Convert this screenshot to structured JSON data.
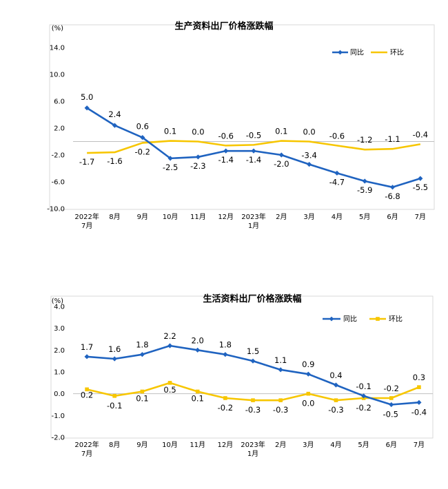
{
  "colors": {
    "yoy": "#1f63c0",
    "mom": "#f7c600"
  },
  "chart_data": [
    {
      "type": "line",
      "title": "生产资料出厂价格涨跌幅",
      "unit": "(%)",
      "categories": [
        [
          "2022年",
          "7月"
        ],
        [
          "8月"
        ],
        [
          "9月"
        ],
        [
          "10月"
        ],
        [
          "11月"
        ],
        [
          "12月"
        ],
        [
          "2023年",
          "1月"
        ],
        [
          "2月"
        ],
        [
          "3月"
        ],
        [
          "4月"
        ],
        [
          "5月"
        ],
        [
          "6月"
        ],
        [
          "7月"
        ]
      ],
      "ylim": [
        -10,
        14
      ],
      "yticks": [
        14,
        10,
        6,
        2,
        -2,
        -6,
        -10
      ],
      "ytick_labels": [
        "14.0",
        "10.0",
        "6.0",
        "2.0",
        "-2.0",
        "-6.0",
        "-10.0"
      ],
      "legend": {
        "placement": "top-right"
      },
      "series": [
        {
          "name": "同比",
          "color": "#1f63c0",
          "marker": "diamond",
          "values": [
            5.0,
            2.4,
            0.6,
            -2.5,
            -2.3,
            -1.4,
            -1.4,
            -2.0,
            -3.4,
            -4.7,
            -5.9,
            -6.8,
            -5.5
          ],
          "labels": [
            "5.0",
            "2.4",
            "0.6",
            "-2.5",
            "-2.3",
            "-1.4",
            "-1.4",
            "-2.0",
            "-3.4",
            "-4.7",
            "-5.9",
            "-6.8",
            "-5.5"
          ]
        },
        {
          "name": "环比",
          "color": "#f7c600",
          "marker": "none",
          "values": [
            -1.7,
            -1.6,
            -0.2,
            0.1,
            0.0,
            -0.6,
            -0.5,
            0.1,
            0.0,
            -0.6,
            -1.2,
            -1.1,
            -0.4
          ],
          "labels": [
            "-1.7",
            "-1.6",
            "-0.2",
            "0.1",
            "0.0",
            "-0.6",
            "-0.5",
            "0.1",
            "0.0",
            "-0.6",
            "-1.2",
            "-1.1",
            "-0.4"
          ]
        }
      ]
    },
    {
      "type": "line",
      "title": "生活资料出厂价格涨跌幅",
      "unit": "(%)",
      "categories": [
        [
          "2022年",
          "7月"
        ],
        [
          "8月"
        ],
        [
          "9月"
        ],
        [
          "10月"
        ],
        [
          "11月"
        ],
        [
          "12月"
        ],
        [
          "2023年",
          "1月"
        ],
        [
          "2月"
        ],
        [
          "3月"
        ],
        [
          "4月"
        ],
        [
          "5月"
        ],
        [
          "6月"
        ],
        [
          "7月"
        ]
      ],
      "ylim": [
        -2,
        4
      ],
      "yticks": [
        4,
        3,
        2,
        1,
        0,
        -1,
        -2
      ],
      "ytick_labels": [
        "4.0",
        "3.0",
        "2.0",
        "1.0",
        "0.0",
        "-1.0",
        "-2.0"
      ],
      "legend": {
        "placement": "top-right"
      },
      "series": [
        {
          "name": "同比",
          "color": "#1f63c0",
          "marker": "diamond",
          "values": [
            1.7,
            1.6,
            1.8,
            2.2,
            2.0,
            1.8,
            1.5,
            1.1,
            0.9,
            0.4,
            -0.1,
            -0.5,
            -0.4
          ],
          "labels": [
            "1.7",
            "1.6",
            "1.8",
            "2.2",
            "2.0",
            "1.8",
            "1.5",
            "1.1",
            "0.9",
            "0.4",
            "-0.1",
            "-0.5",
            "-0.4"
          ]
        },
        {
          "name": "环比",
          "color": "#f7c600",
          "marker": "square",
          "values": [
            0.2,
            -0.1,
            0.1,
            0.5,
            0.1,
            -0.2,
            -0.3,
            -0.3,
            0.0,
            -0.3,
            -0.2,
            -0.2,
            0.3
          ],
          "labels": [
            "0.2",
            "-0.1",
            "0.1",
            "0.5",
            "0.1",
            "-0.2",
            "-0.3",
            "-0.3",
            "0.0",
            "-0.3",
            "-0.2",
            "-0.2",
            "0.3"
          ]
        }
      ]
    }
  ]
}
